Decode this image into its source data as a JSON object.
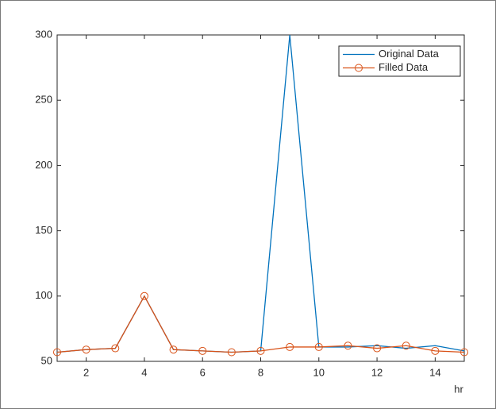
{
  "chart_data": {
    "type": "line",
    "x": [
      1,
      2,
      3,
      4,
      5,
      6,
      7,
      8,
      9,
      10,
      11,
      12,
      13,
      14,
      15
    ],
    "series": [
      {
        "name": "Original Data",
        "color": "#0072bd",
        "values": [
          57,
          59,
          60,
          100,
          59,
          58,
          57,
          58,
          300,
          61,
          61,
          62,
          60,
          62,
          58
        ]
      },
      {
        "name": "Filled Data",
        "color": "#d95319",
        "marker": "o",
        "values": [
          57,
          59,
          60,
          100,
          59,
          58,
          57,
          58,
          61,
          61,
          62,
          60,
          62,
          58,
          57
        ]
      }
    ],
    "xlabel": "hr",
    "xlim": [
      1,
      15
    ],
    "xticks": [
      2,
      4,
      6,
      8,
      10,
      12,
      14
    ],
    "ylim": [
      50,
      300
    ],
    "yticks": [
      50,
      100,
      150,
      200,
      250,
      300
    ],
    "legend": "northeast"
  }
}
